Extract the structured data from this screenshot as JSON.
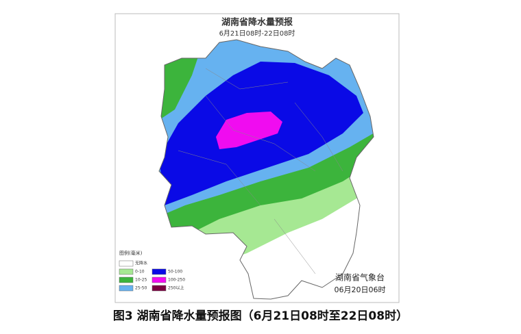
{
  "map": {
    "title": "湖南省降水量预报",
    "subtitle": "6月21日08时-22日08时",
    "legend": {
      "title": "图例(毫米)",
      "items": [
        {
          "label": "无降水",
          "color": "#ffffff"
        },
        {
          "label": "0-10",
          "color": "#a6e893"
        },
        {
          "label": "10-25",
          "color": "#3cb43c"
        },
        {
          "label": "25-50",
          "color": "#66b2f0"
        },
        {
          "label": "50-100",
          "color": "#0a0ae6"
        },
        {
          "label": "100-250",
          "color": "#f00cf0"
        },
        {
          "label": "250以上",
          "color": "#7a0040"
        }
      ]
    },
    "agency": "湖南省气象台",
    "issued": "06月20日06时"
  },
  "caption": "图3 湖南省降水量预报图（6月21日08时至22日08时）"
}
